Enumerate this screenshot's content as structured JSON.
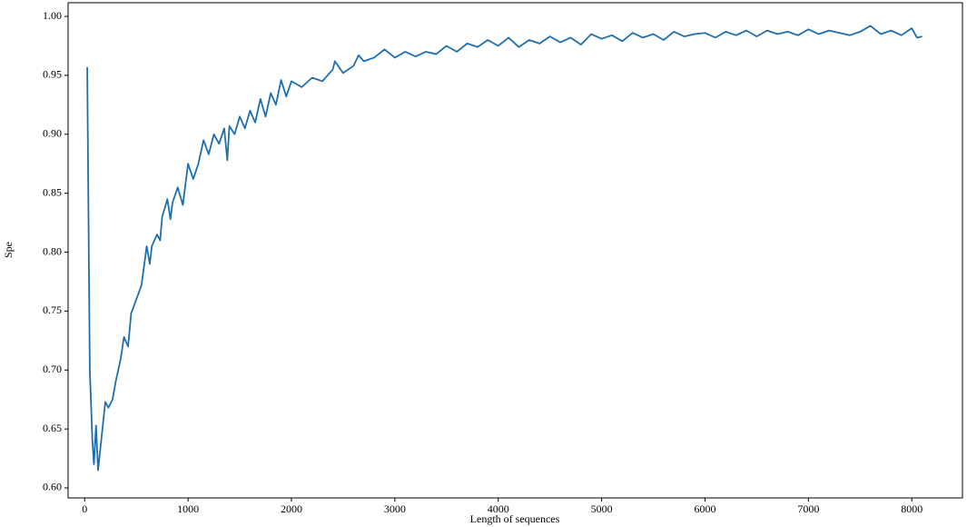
{
  "chart_data": {
    "type": "line",
    "x_label": "Length of sequences",
    "y_label": "Spe",
    "xlim": [
      -160,
      8490
    ],
    "ylim": [
      0.5915,
      1.0116
    ],
    "xticks": [
      0,
      1000,
      2000,
      3000,
      4000,
      5000,
      6000,
      7000,
      8000
    ],
    "yticks": [
      {
        "value": 0.6,
        "label": "0.60"
      },
      {
        "value": 0.65,
        "label": "0.65"
      },
      {
        "value": 0.7,
        "label": "0.70"
      },
      {
        "value": 0.75,
        "label": "0.75"
      },
      {
        "value": 0.8,
        "label": "0.80"
      },
      {
        "value": 0.85,
        "label": "0.85"
      },
      {
        "value": 0.9,
        "label": "0.90"
      },
      {
        "value": 0.95,
        "label": "0.95"
      },
      {
        "value": 1.0,
        "label": "1.00"
      }
    ],
    "grid": false,
    "series": [
      {
        "color": "#1f6fad",
        "x": [
          25,
          50,
          75,
          90,
          110,
          130,
          160,
          200,
          230,
          270,
          300,
          350,
          380,
          420,
          450,
          500,
          550,
          600,
          630,
          650,
          700,
          730,
          750,
          800,
          830,
          850,
          900,
          950,
          1000,
          1050,
          1100,
          1150,
          1200,
          1250,
          1300,
          1350,
          1380,
          1400,
          1450,
          1500,
          1550,
          1600,
          1650,
          1700,
          1750,
          1800,
          1850,
          1900,
          1950,
          2000,
          2100,
          2200,
          2300,
          2400,
          2420,
          2500,
          2600,
          2650,
          2700,
          2800,
          2900,
          3000,
          3100,
          3200,
          3300,
          3400,
          3500,
          3600,
          3700,
          3800,
          3900,
          4000,
          4100,
          4200,
          4300,
          4400,
          4500,
          4600,
          4700,
          4800,
          4900,
          5000,
          5100,
          5200,
          5300,
          5400,
          5500,
          5600,
          5700,
          5800,
          5900,
          6000,
          6100,
          6200,
          6300,
          6400,
          6500,
          6600,
          6700,
          6800,
          6900,
          7000,
          7100,
          7200,
          7300,
          7400,
          7500,
          7600,
          7700,
          7800,
          7900,
          8000,
          8050,
          8100
        ],
        "values": [
          0.957,
          0.7,
          0.64,
          0.62,
          0.653,
          0.615,
          0.64,
          0.673,
          0.668,
          0.675,
          0.69,
          0.71,
          0.728,
          0.72,
          0.748,
          0.76,
          0.772,
          0.805,
          0.79,
          0.805,
          0.815,
          0.81,
          0.83,
          0.845,
          0.828,
          0.842,
          0.855,
          0.84,
          0.875,
          0.862,
          0.875,
          0.895,
          0.883,
          0.9,
          0.892,
          0.905,
          0.878,
          0.907,
          0.9,
          0.915,
          0.905,
          0.92,
          0.91,
          0.93,
          0.915,
          0.935,
          0.925,
          0.946,
          0.932,
          0.945,
          0.94,
          0.948,
          0.945,
          0.955,
          0.962,
          0.952,
          0.958,
          0.967,
          0.962,
          0.965,
          0.972,
          0.965,
          0.97,
          0.966,
          0.97,
          0.968,
          0.975,
          0.97,
          0.977,
          0.974,
          0.98,
          0.975,
          0.982,
          0.974,
          0.98,
          0.977,
          0.983,
          0.978,
          0.982,
          0.976,
          0.985,
          0.981,
          0.984,
          0.979,
          0.986,
          0.982,
          0.985,
          0.98,
          0.987,
          0.983,
          0.985,
          0.986,
          0.982,
          0.987,
          0.984,
          0.988,
          0.983,
          0.988,
          0.985,
          0.987,
          0.984,
          0.989,
          0.985,
          0.988,
          0.986,
          0.984,
          0.987,
          0.992,
          0.985,
          0.988,
          0.984,
          0.99,
          0.982,
          0.983
        ]
      }
    ]
  }
}
